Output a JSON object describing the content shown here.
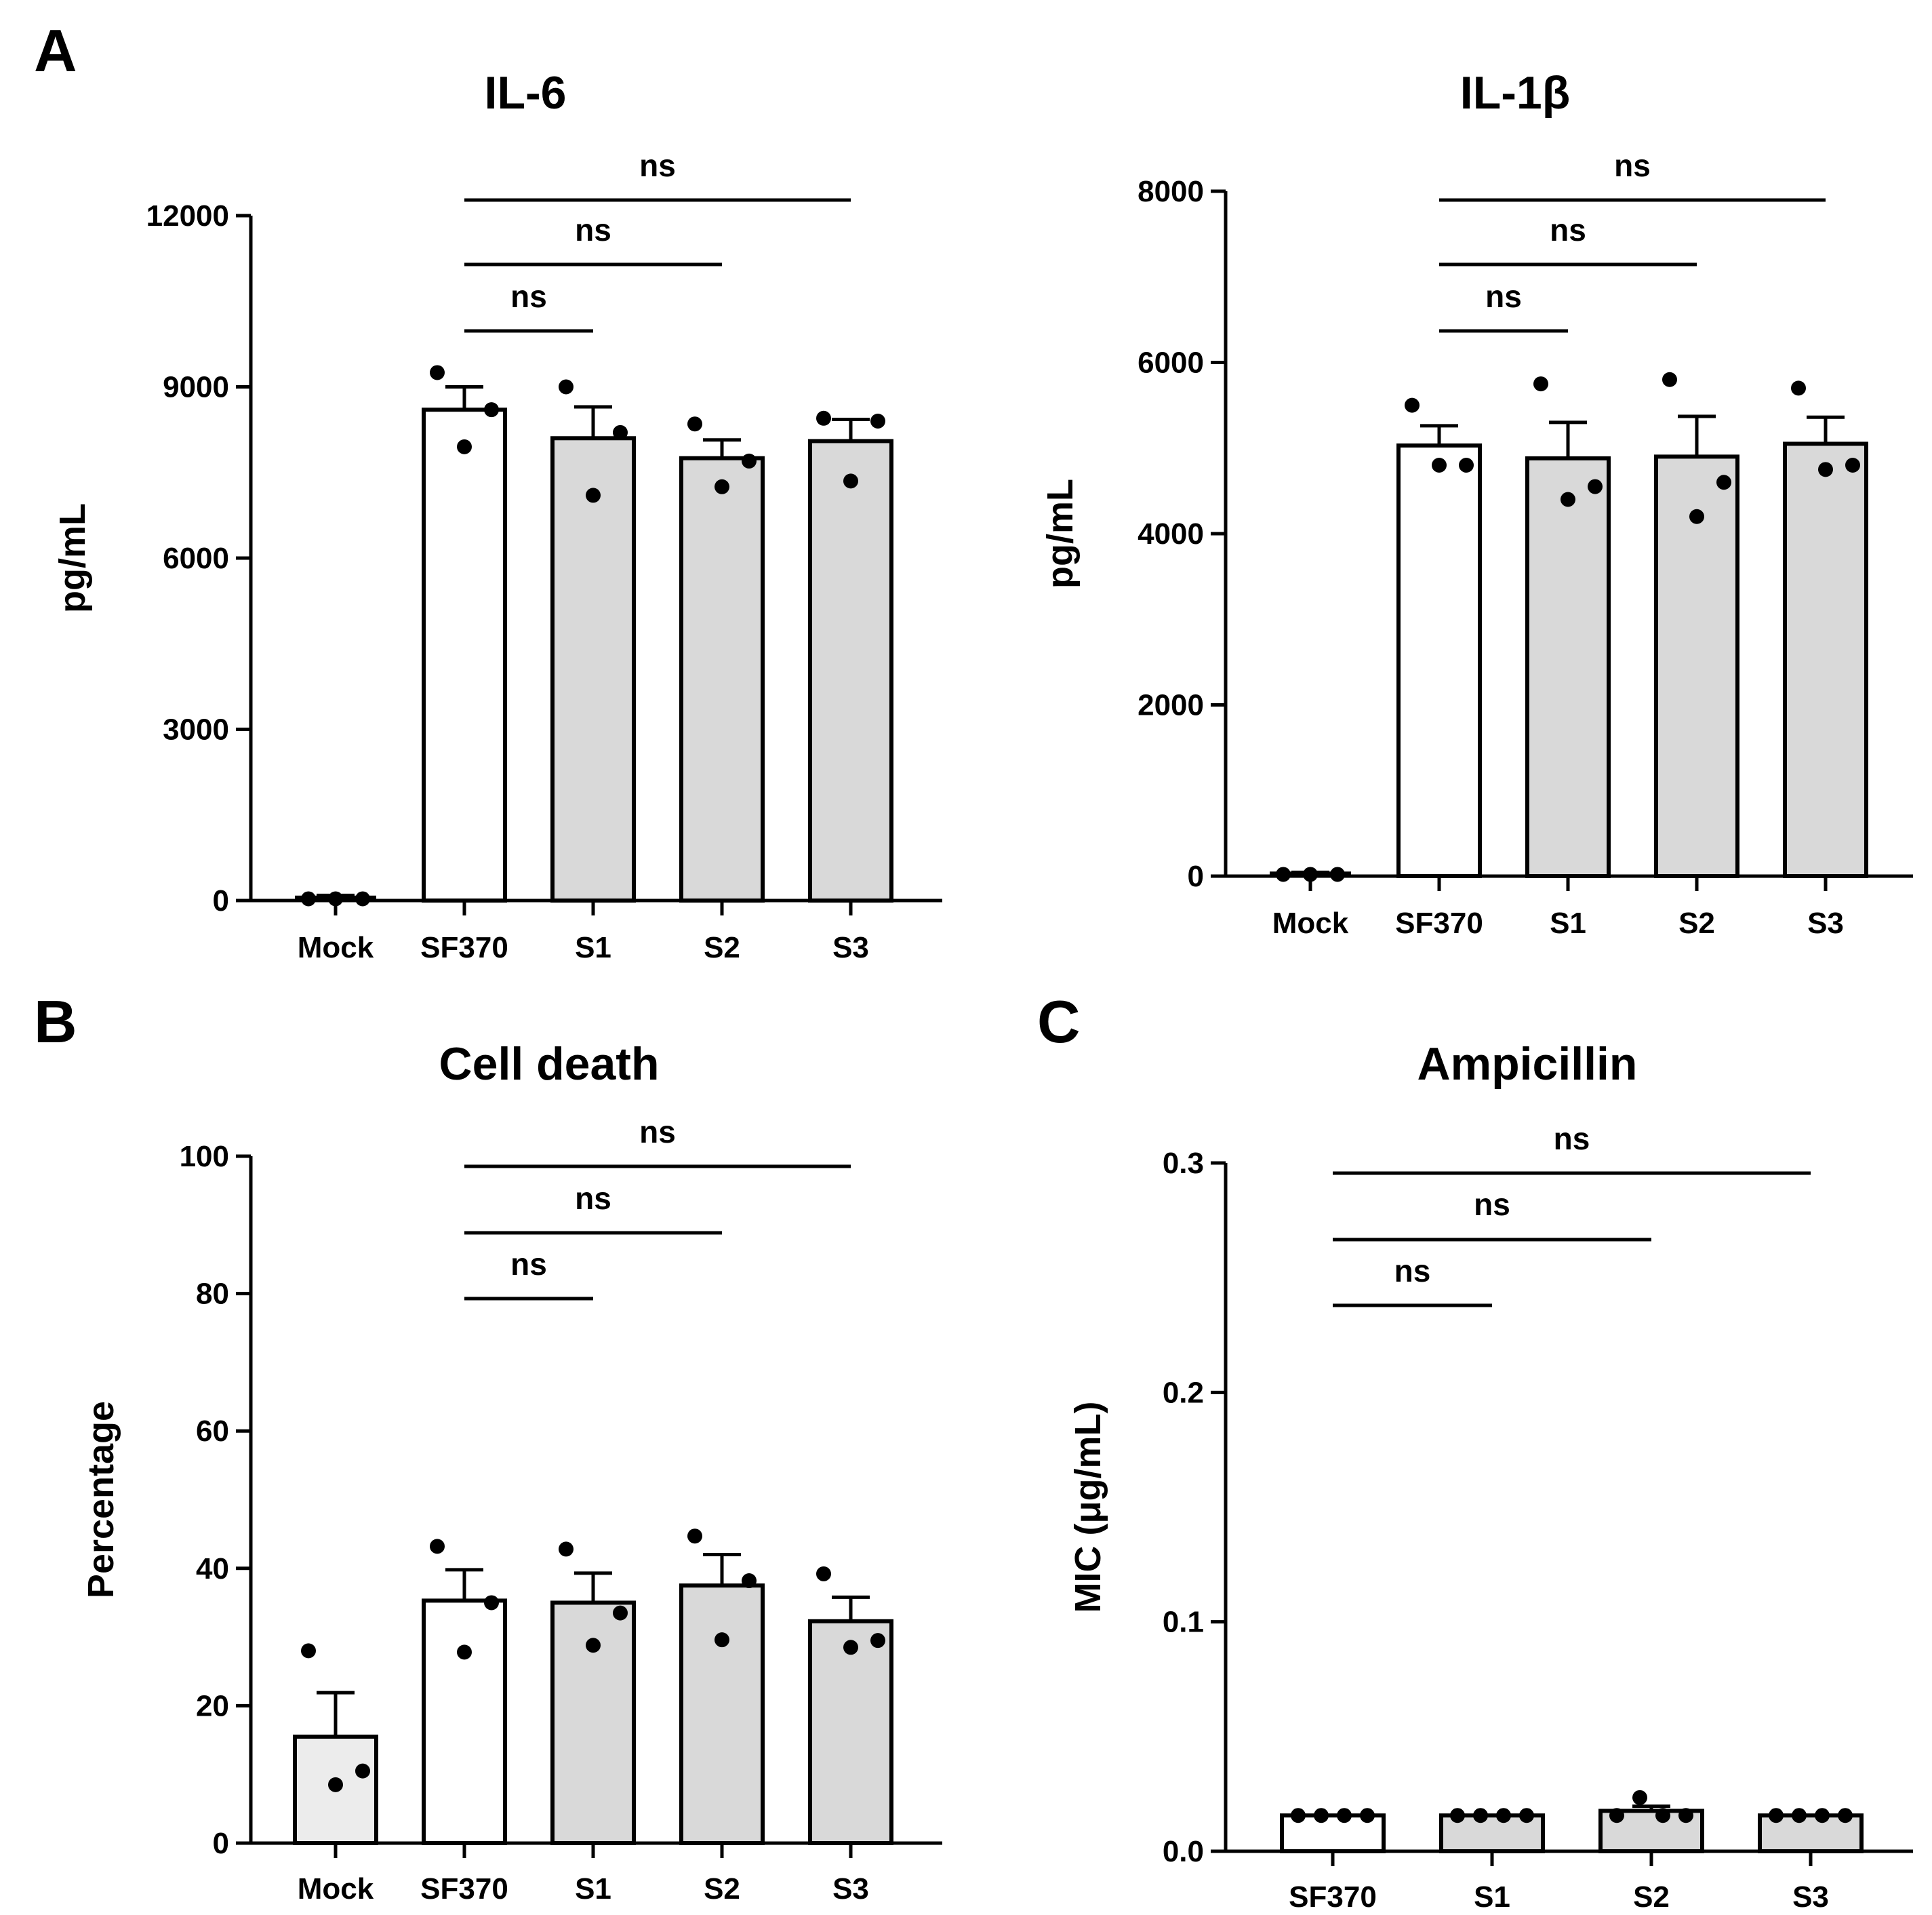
{
  "colors": {
    "white_bar": "#ffffff",
    "gray_bar": "#d9d9d9",
    "mock_bar": "#ececec",
    "ink": "#000000"
  },
  "chart_data": [
    {
      "id": "il6",
      "panel_letter": "A",
      "type": "bar",
      "title": "IL-6",
      "xlabel": "",
      "ylabel": "pg/mL",
      "ylim": [
        0,
        12000
      ],
      "yticks": [
        0,
        3000,
        6000,
        9000,
        12000
      ],
      "ytick_labels": [
        "0",
        "3000",
        "6000",
        "9000",
        "12000"
      ],
      "categories": [
        "Mock",
        "SF370",
        "S1",
        "S2",
        "S3"
      ],
      "values": [
        50,
        8600,
        8100,
        7750,
        8050
      ],
      "errors": [
        40,
        400,
        550,
        320,
        380
      ],
      "fills": [
        "none",
        "white",
        "gray",
        "gray",
        "gray"
      ],
      "points": [
        [
          30,
          30,
          30
        ],
        [
          9250,
          7950,
          8600
        ],
        [
          9000,
          7100,
          8200
        ],
        [
          8350,
          7250,
          7700
        ],
        [
          8450,
          7350,
          8400
        ]
      ],
      "comparisons": [
        {
          "from": "SF370",
          "to": "S3",
          "label": "ns"
        },
        {
          "from": "SF370",
          "to": "S2",
          "label": "ns"
        },
        {
          "from": "SF370",
          "to": "S1",
          "label": "ns"
        }
      ]
    },
    {
      "id": "il1b",
      "panel_letter": "",
      "type": "bar",
      "title": "IL-1β",
      "xlabel": "",
      "ylabel": "pg/mL",
      "ylim": [
        0,
        8000
      ],
      "yticks": [
        0,
        2000,
        4000,
        6000,
        8000
      ],
      "ytick_labels": [
        "0",
        "2000",
        "4000",
        "6000",
        "8000"
      ],
      "categories": [
        "Mock",
        "SF370",
        "S1",
        "S2",
        "S3"
      ],
      "values": [
        30,
        5030,
        4880,
        4900,
        5050
      ],
      "errors": [
        15,
        230,
        420,
        470,
        310
      ],
      "fills": [
        "none",
        "white",
        "gray",
        "gray",
        "gray"
      ],
      "points": [
        [
          20,
          20,
          20
        ],
        [
          5500,
          4800,
          4800
        ],
        [
          5750,
          4400,
          4550
        ],
        [
          5800,
          4200,
          4600
        ],
        [
          5700,
          4750,
          4800
        ]
      ],
      "comparisons": [
        {
          "from": "SF370",
          "to": "S3",
          "label": "ns"
        },
        {
          "from": "SF370",
          "to": "S2",
          "label": "ns"
        },
        {
          "from": "SF370",
          "to": "S1",
          "label": "ns"
        }
      ]
    },
    {
      "id": "celldeath",
      "panel_letter": "B",
      "type": "bar",
      "title": "Cell death",
      "xlabel": "",
      "ylabel": "Percentage",
      "ylim": [
        0,
        100
      ],
      "yticks": [
        0,
        20,
        40,
        60,
        80,
        100
      ],
      "ytick_labels": [
        "0",
        "20",
        "40",
        "60",
        "80",
        "100"
      ],
      "categories": [
        "Mock",
        "SF370",
        "S1",
        "S2",
        "S3"
      ],
      "values": [
        15.5,
        35.3,
        35.0,
        37.5,
        32.3
      ],
      "errors": [
        6.4,
        4.5,
        4.3,
        4.5,
        3.5
      ],
      "fills": [
        "light",
        "white",
        "gray",
        "gray",
        "gray"
      ],
      "points": [
        [
          28,
          8.5,
          10.5
        ],
        [
          43.2,
          27.8,
          35.0
        ],
        [
          42.8,
          28.8,
          33.5
        ],
        [
          44.7,
          29.6,
          38.2
        ],
        [
          39.2,
          28.5,
          29.5
        ]
      ],
      "comparisons": [
        {
          "from": "SF370",
          "to": "S3",
          "label": "ns"
        },
        {
          "from": "SF370",
          "to": "S2",
          "label": "ns"
        },
        {
          "from": "SF370",
          "to": "S1",
          "label": "ns"
        }
      ]
    },
    {
      "id": "ampicillin",
      "panel_letter": "C",
      "type": "bar",
      "title": "Ampicillin",
      "xlabel": "",
      "ylabel": "MIC (μg/mL)",
      "ylim": [
        0,
        0.3
      ],
      "yticks": [
        0,
        0.1,
        0.2,
        0.3
      ],
      "ytick_labels": [
        "0.0",
        "0.1",
        "0.2",
        "0.3"
      ],
      "categories": [
        "SF370",
        "S1",
        "S2",
        "S3"
      ],
      "values": [
        0.0156,
        0.0156,
        0.0176,
        0.0156
      ],
      "errors": [
        0,
        0,
        0.002,
        0
      ],
      "fills": [
        "white",
        "gray",
        "gray",
        "gray"
      ],
      "points": [
        [
          0.0156,
          0.0156,
          0.0156,
          0.0156
        ],
        [
          0.0156,
          0.0156,
          0.0156,
          0.0156
        ],
        [
          0.0156,
          0.0234,
          0.0156,
          0.0156
        ],
        [
          0.0156,
          0.0156,
          0.0156,
          0.0156
        ]
      ],
      "comparisons": [
        {
          "from": "SF370",
          "to": "S3",
          "label": "ns"
        },
        {
          "from": "SF370",
          "to": "S2",
          "label": "ns"
        },
        {
          "from": "SF370",
          "to": "S1",
          "label": "ns"
        }
      ]
    }
  ]
}
